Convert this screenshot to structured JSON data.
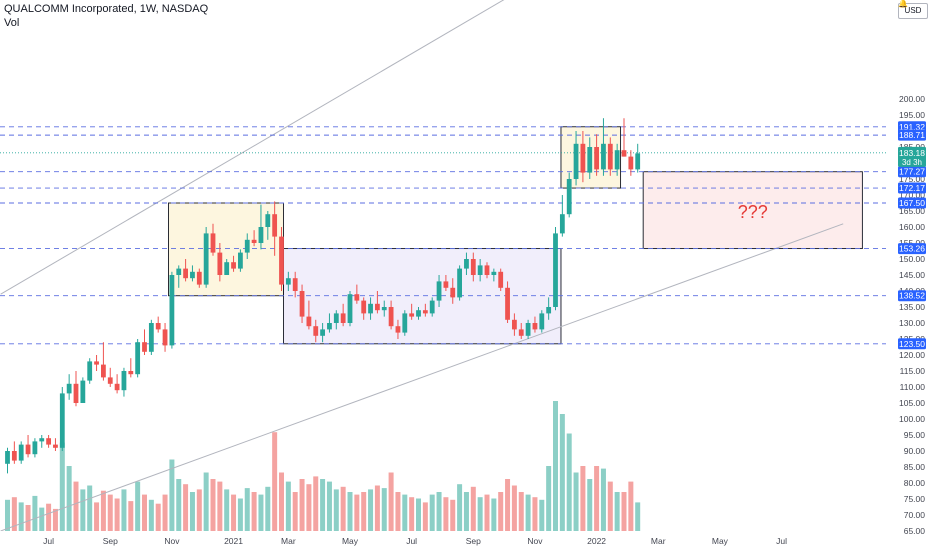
{
  "header": {
    "title": "QUALCOMM Incorporated, 1W, NASDAQ",
    "volume_label": "Vol"
  },
  "currency_button": "USD",
  "question_label": "???",
  "colors": {
    "up": "#26a69a",
    "down": "#ef5350",
    "up_vol": "#8ccfc6",
    "down_vol": "#f4a3a1",
    "level_line": "#5b6ee1",
    "badge": "#2962ff",
    "price_badge": "#26a69a",
    "channel": "#b2b5be",
    "box_border": "#131722",
    "question": "#e53935"
  },
  "chart_data": {
    "type": "candlestick",
    "y_axis": {
      "min": 65,
      "max": 200,
      "ticks": [
        65,
        70,
        75,
        80,
        85,
        90,
        95,
        100,
        105,
        110,
        115,
        120,
        125,
        130,
        135,
        140,
        145,
        150,
        155,
        160,
        165,
        170,
        175,
        180,
        185,
        190,
        195,
        200
      ],
      "tick_labels": [
        "65.00",
        "70.00",
        "75.00",
        "80.00",
        "85.00",
        "90.00",
        "95.00",
        "100.00",
        "105.00",
        "110.00",
        "115.00",
        "120.00",
        "125.00",
        "130.00",
        "135.00",
        "140.00",
        "145.00",
        "150.00",
        "155.00",
        "160.00",
        "165.00",
        "170.00",
        "175.00",
        "180.00",
        "185.00",
        "190.00",
        "195.00",
        "200.00"
      ]
    },
    "x_axis": {
      "labels": [
        {
          "label": "Jul",
          "week": 6
        },
        {
          "label": "Sep",
          "week": 15
        },
        {
          "label": "Nov",
          "week": 24
        },
        {
          "label": "2021",
          "week": 33
        },
        {
          "label": "Mar",
          "week": 41
        },
        {
          "label": "May",
          "week": 50
        },
        {
          "label": "Jul",
          "week": 59
        },
        {
          "label": "Sep",
          "week": 68
        },
        {
          "label": "Nov",
          "week": 77
        },
        {
          "label": "2022",
          "week": 86
        },
        {
          "label": "Mar",
          "week": 95
        },
        {
          "label": "May",
          "week": 104
        },
        {
          "label": "Jul",
          "week": 113
        }
      ]
    },
    "levels": [
      191.32,
      188.71,
      177.27,
      172.17,
      167.5,
      153.26,
      138.52,
      123.5
    ],
    "level_labels": [
      "191.32",
      "188.71",
      "177.27",
      "172.17",
      "167.50",
      "153.26",
      "138.52",
      "123.50"
    ],
    "last_price": {
      "value": 183.18,
      "label": "183.18",
      "countdown": "3d 3h"
    },
    "channel_lines": [
      {
        "from": {
          "week": -1,
          "price": 139
        },
        "to": {
          "week": 90,
          "price": 253
        }
      },
      {
        "from": {
          "week": -1,
          "price": 65
        },
        "to": {
          "week": 122,
          "price": 161
        }
      }
    ],
    "boxes": [
      {
        "from_week": 23.5,
        "to_week": 40.3,
        "low": 138.52,
        "high": 167.5,
        "fill": "#fdf6df"
      },
      {
        "from_week": 40.3,
        "to_week": 80.8,
        "low": 123.5,
        "high": 153.26,
        "fill": "#f1eefb"
      },
      {
        "from_week": 80.8,
        "to_week": 89.5,
        "low": 172.17,
        "high": 191.32,
        "fill": "#fdf6df"
      },
      {
        "from_week": 92.8,
        "to_week": 124.8,
        "low": 153.26,
        "high": 177.27,
        "fill": "#fdecec"
      }
    ],
    "candles": [
      {
        "o": 86,
        "h": 91,
        "l": 83,
        "c": 90,
        "v": 24
      },
      {
        "o": 90,
        "h": 93,
        "l": 86,
        "c": 87,
        "v": 26
      },
      {
        "o": 87,
        "h": 93,
        "l": 86,
        "c": 92,
        "v": 22
      },
      {
        "o": 92,
        "h": 95,
        "l": 88,
        "c": 89,
        "v": 20
      },
      {
        "o": 89,
        "h": 94,
        "l": 88,
        "c": 93,
        "v": 27
      },
      {
        "o": 93,
        "h": 95,
        "l": 91,
        "c": 94,
        "v": 18
      },
      {
        "o": 94,
        "h": 95,
        "l": 91,
        "c": 92,
        "v": 21
      },
      {
        "o": 92,
        "h": 94,
        "l": 90,
        "c": 91,
        "v": 17
      },
      {
        "o": 91,
        "h": 110,
        "l": 90,
        "c": 108,
        "v": 68
      },
      {
        "o": 108,
        "h": 114,
        "l": 106,
        "c": 111,
        "v": 50
      },
      {
        "o": 111,
        "h": 115,
        "l": 104,
        "c": 105,
        "v": 38
      },
      {
        "o": 105,
        "h": 113,
        "l": 105,
        "c": 112,
        "v": 32
      },
      {
        "o": 112,
        "h": 119,
        "l": 111,
        "c": 118,
        "v": 35
      },
      {
        "o": 118,
        "h": 120,
        "l": 115,
        "c": 117,
        "v": 22
      },
      {
        "o": 117,
        "h": 124,
        "l": 112,
        "c": 113,
        "v": 31
      },
      {
        "o": 113,
        "h": 116,
        "l": 110,
        "c": 111,
        "v": 28
      },
      {
        "o": 111,
        "h": 114,
        "l": 108,
        "c": 109,
        "v": 25
      },
      {
        "o": 109,
        "h": 116,
        "l": 107,
        "c": 115,
        "v": 32
      },
      {
        "o": 115,
        "h": 119,
        "l": 113,
        "c": 114,
        "v": 23
      },
      {
        "o": 114,
        "h": 125,
        "l": 113,
        "c": 124,
        "v": 38
      },
      {
        "o": 124,
        "h": 128,
        "l": 120,
        "c": 121,
        "v": 28
      },
      {
        "o": 121,
        "h": 131,
        "l": 120,
        "c": 130,
        "v": 24
      },
      {
        "o": 130,
        "h": 132,
        "l": 127,
        "c": 128,
        "v": 21
      },
      {
        "o": 128,
        "h": 130,
        "l": 121,
        "c": 123,
        "v": 28
      },
      {
        "o": 123,
        "h": 146,
        "l": 122,
        "c": 145,
        "v": 55
      },
      {
        "o": 145,
        "h": 148,
        "l": 141,
        "c": 147,
        "v": 40
      },
      {
        "o": 147,
        "h": 150,
        "l": 143,
        "c": 144,
        "v": 36
      },
      {
        "o": 144,
        "h": 148,
        "l": 143,
        "c": 146,
        "v": 30
      },
      {
        "o": 146,
        "h": 147,
        "l": 141,
        "c": 142,
        "v": 32
      },
      {
        "o": 142,
        "h": 160,
        "l": 141,
        "c": 158,
        "v": 45
      },
      {
        "o": 158,
        "h": 161,
        "l": 151,
        "c": 152,
        "v": 40
      },
      {
        "o": 152,
        "h": 155,
        "l": 143,
        "c": 145,
        "v": 38
      },
      {
        "o": 145,
        "h": 150,
        "l": 145,
        "c": 149,
        "v": 32
      },
      {
        "o": 149,
        "h": 151,
        "l": 146,
        "c": 147,
        "v": 28
      },
      {
        "o": 147,
        "h": 153,
        "l": 146,
        "c": 152,
        "v": 25
      },
      {
        "o": 152,
        "h": 158,
        "l": 150,
        "c": 156,
        "v": 33
      },
      {
        "o": 156,
        "h": 159,
        "l": 154,
        "c": 155,
        "v": 30
      },
      {
        "o": 155,
        "h": 167,
        "l": 153,
        "c": 160,
        "v": 28
      },
      {
        "o": 160,
        "h": 165,
        "l": 156,
        "c": 164,
        "v": 34
      },
      {
        "o": 164,
        "h": 168,
        "l": 151,
        "c": 157,
        "v": 76
      },
      {
        "o": 157,
        "h": 160,
        "l": 140,
        "c": 142,
        "v": 45
      },
      {
        "o": 142,
        "h": 146,
        "l": 140,
        "c": 144,
        "v": 38
      },
      {
        "o": 144,
        "h": 146,
        "l": 138,
        "c": 140,
        "v": 30
      },
      {
        "o": 140,
        "h": 142,
        "l": 130,
        "c": 132,
        "v": 40
      },
      {
        "o": 132,
        "h": 137,
        "l": 128,
        "c": 129,
        "v": 36
      },
      {
        "o": 129,
        "h": 131,
        "l": 124,
        "c": 126,
        "v": 42
      },
      {
        "o": 126,
        "h": 130,
        "l": 124,
        "c": 128,
        "v": 40
      },
      {
        "o": 128,
        "h": 133,
        "l": 127,
        "c": 130,
        "v": 38
      },
      {
        "o": 130,
        "h": 134,
        "l": 128,
        "c": 133,
        "v": 32
      },
      {
        "o": 133,
        "h": 136,
        "l": 129,
        "c": 130,
        "v": 34
      },
      {
        "o": 130,
        "h": 140,
        "l": 129,
        "c": 139,
        "v": 30
      },
      {
        "o": 139,
        "h": 142,
        "l": 136,
        "c": 137,
        "v": 28
      },
      {
        "o": 137,
        "h": 138,
        "l": 131,
        "c": 133,
        "v": 30
      },
      {
        "o": 133,
        "h": 138,
        "l": 131,
        "c": 136,
        "v": 32
      },
      {
        "o": 136,
        "h": 140,
        "l": 133,
        "c": 134,
        "v": 35
      },
      {
        "o": 134,
        "h": 137,
        "l": 132,
        "c": 135,
        "v": 33
      },
      {
        "o": 135,
        "h": 137,
        "l": 128,
        "c": 129,
        "v": 45
      },
      {
        "o": 129,
        "h": 131,
        "l": 125,
        "c": 127,
        "v": 30
      },
      {
        "o": 127,
        "h": 134,
        "l": 126,
        "c": 133,
        "v": 28
      },
      {
        "o": 133,
        "h": 136,
        "l": 131,
        "c": 132,
        "v": 26
      },
      {
        "o": 132,
        "h": 135,
        "l": 131,
        "c": 134,
        "v": 25
      },
      {
        "o": 134,
        "h": 136,
        "l": 132,
        "c": 133,
        "v": 22
      },
      {
        "o": 133,
        "h": 138,
        "l": 132,
        "c": 137,
        "v": 28
      },
      {
        "o": 137,
        "h": 145,
        "l": 135,
        "c": 143,
        "v": 30
      },
      {
        "o": 143,
        "h": 145,
        "l": 140,
        "c": 141,
        "v": 26
      },
      {
        "o": 141,
        "h": 144,
        "l": 136,
        "c": 138,
        "v": 24
      },
      {
        "o": 138,
        "h": 148,
        "l": 137,
        "c": 147,
        "v": 36
      },
      {
        "o": 147,
        "h": 152,
        "l": 145,
        "c": 150,
        "v": 30
      },
      {
        "o": 150,
        "h": 152,
        "l": 143,
        "c": 145,
        "v": 34
      },
      {
        "o": 145,
        "h": 150,
        "l": 143,
        "c": 148,
        "v": 26
      },
      {
        "o": 148,
        "h": 149,
        "l": 144,
        "c": 145,
        "v": 28
      },
      {
        "o": 145,
        "h": 147,
        "l": 143,
        "c": 146,
        "v": 25
      },
      {
        "o": 146,
        "h": 147,
        "l": 140,
        "c": 141,
        "v": 30
      },
      {
        "o": 141,
        "h": 143,
        "l": 130,
        "c": 131,
        "v": 40
      },
      {
        "o": 131,
        "h": 133,
        "l": 126,
        "c": 128,
        "v": 35
      },
      {
        "o": 128,
        "h": 130,
        "l": 125,
        "c": 126,
        "v": 30
      },
      {
        "o": 126,
        "h": 131,
        "l": 125,
        "c": 130,
        "v": 28
      },
      {
        "o": 130,
        "h": 132,
        "l": 127,
        "c": 128,
        "v": 26
      },
      {
        "o": 128,
        "h": 134,
        "l": 127,
        "c": 133,
        "v": 24
      },
      {
        "o": 133,
        "h": 138,
        "l": 131,
        "c": 135,
        "v": 50
      },
      {
        "o": 135,
        "h": 160,
        "l": 134,
        "c": 158,
        "v": 100
      },
      {
        "o": 158,
        "h": 170,
        "l": 157,
        "c": 164,
        "v": 90
      },
      {
        "o": 164,
        "h": 177,
        "l": 163,
        "c": 175,
        "v": 75
      },
      {
        "o": 175,
        "h": 190,
        "l": 173,
        "c": 186,
        "v": 45
      },
      {
        "o": 186,
        "h": 190,
        "l": 174,
        "c": 177,
        "v": 50
      },
      {
        "o": 177,
        "h": 188,
        "l": 175,
        "c": 185,
        "v": 40
      },
      {
        "o": 185,
        "h": 189,
        "l": 176,
        "c": 178,
        "v": 50
      },
      {
        "o": 178,
        "h": 194,
        "l": 176,
        "c": 186,
        "v": 48
      },
      {
        "o": 186,
        "h": 188,
        "l": 176,
        "c": 178,
        "v": 38
      },
      {
        "o": 178,
        "h": 186,
        "l": 176,
        "c": 184,
        "v": 30
      },
      {
        "o": 184,
        "h": 194,
        "l": 182,
        "c": 182,
        "v": 30
      },
      {
        "o": 182,
        "h": 184,
        "l": 176,
        "c": 178,
        "v": 38
      },
      {
        "o": 178,
        "h": 186,
        "l": 177,
        "c": 183,
        "v": 22
      }
    ]
  }
}
